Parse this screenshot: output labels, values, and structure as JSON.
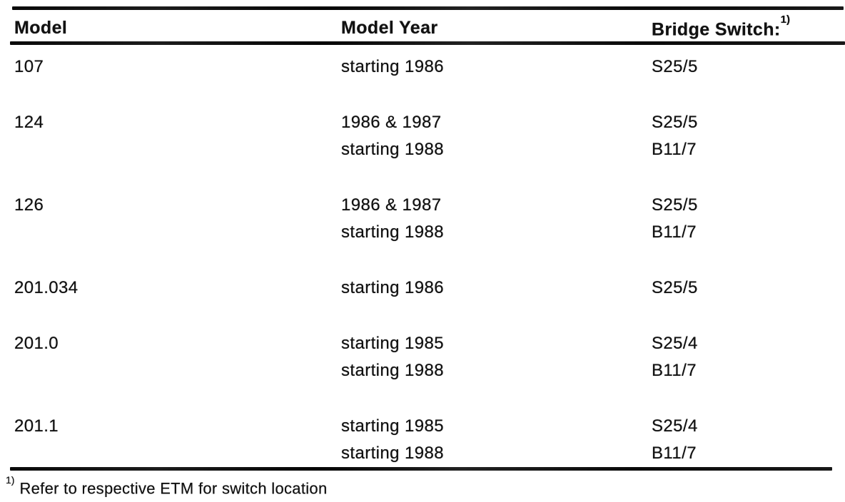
{
  "colors": {
    "ink": "#121212",
    "paper": "#ffffff"
  },
  "table": {
    "header": {
      "col_model": "Model",
      "col_model_year": "Model Year",
      "col_bridge_switch": "Bridge Switch:",
      "bridge_switch_footnote_marker": "1)"
    },
    "groups": [
      {
        "model": "107",
        "rows": [
          {
            "year": "starting 1986",
            "switch": "S25/5"
          }
        ]
      },
      {
        "model": "124",
        "rows": [
          {
            "year": "1986 & 1987",
            "switch": "S25/5"
          },
          {
            "year": "starting 1988",
            "switch": "B11/7"
          }
        ]
      },
      {
        "model": "126",
        "rows": [
          {
            "year": "1986 & 1987",
            "switch": "S25/5"
          },
          {
            "year": "starting 1988",
            "switch": "B11/7"
          }
        ]
      },
      {
        "model": "201.034",
        "rows": [
          {
            "year": "starting 1986",
            "switch": "S25/5"
          }
        ]
      },
      {
        "model": "201.0",
        "rows": [
          {
            "year": "starting 1985",
            "switch": "S25/4"
          },
          {
            "year": "starting 1988",
            "switch": "B11/7"
          }
        ]
      },
      {
        "model": "201.1",
        "rows": [
          {
            "year": "starting 1985",
            "switch": "S25/4"
          },
          {
            "year": "starting 1988",
            "switch": "B11/7"
          }
        ]
      }
    ],
    "footnote": {
      "marker": "1)",
      "text": "Refer to respective ETM for switch location"
    }
  }
}
